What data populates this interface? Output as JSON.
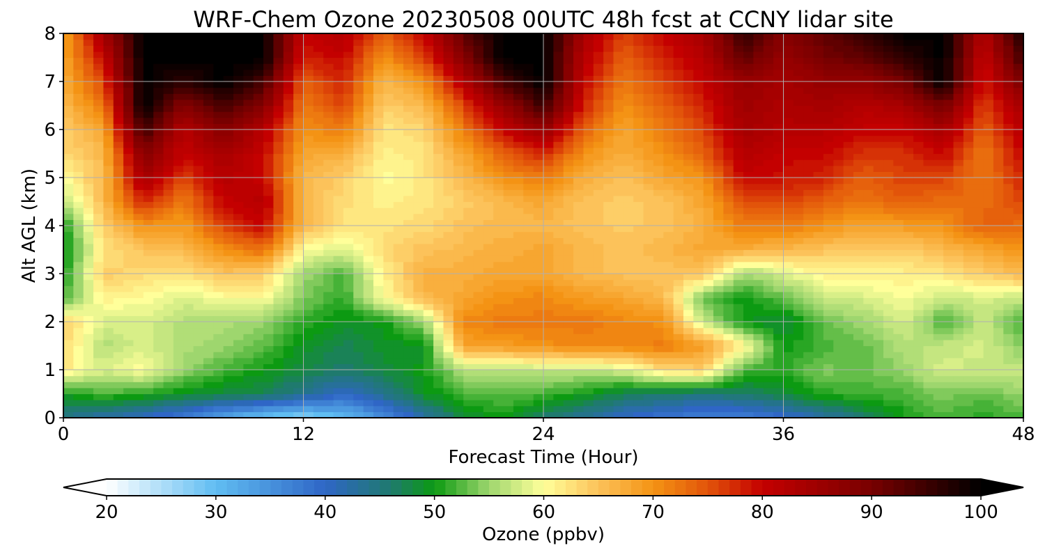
{
  "chart_data": {
    "type": "heatmap",
    "title": "WRF-Chem Ozone  20230508 00UTC 48h fcst at CCNY lidar site",
    "xlabel": "Forecast Time (Hour)",
    "ylabel": "Alt AGL (km)",
    "xlim": [
      0,
      48
    ],
    "ylim": [
      0,
      8
    ],
    "x_ticks": [
      0,
      12,
      24,
      36,
      48
    ],
    "y_ticks": [
      0,
      1,
      2,
      3,
      4,
      5,
      6,
      7,
      8
    ],
    "grid": true,
    "x": [
      0,
      2,
      4,
      6,
      8,
      10,
      12,
      14,
      16,
      18,
      20,
      22,
      24,
      26,
      28,
      30,
      32,
      34,
      36,
      38,
      40,
      42,
      44,
      46,
      48
    ],
    "y": [
      0,
      0.5,
      1,
      1.5,
      2,
      2.5,
      3,
      3.5,
      4,
      4.5,
      5,
      5.5,
      6,
      6.5,
      7,
      7.5,
      8
    ],
    "z_rows": [
      [
        44,
        42,
        40,
        37,
        32,
        29,
        27,
        30,
        35,
        42,
        48,
        50,
        46,
        43,
        40,
        38,
        37,
        37,
        39,
        42,
        46,
        50,
        52,
        51,
        52
      ],
      [
        50,
        52,
        51,
        49,
        48,
        47,
        44,
        40,
        44,
        49,
        52,
        53,
        52,
        50,
        47,
        46,
        45,
        46,
        48,
        51,
        52,
        52,
        54,
        53,
        55
      ],
      [
        62,
        58,
        60,
        55,
        52,
        50,
        48,
        46,
        48,
        50,
        56,
        56,
        57,
        57,
        58,
        63,
        64,
        52,
        51,
        54,
        53,
        55,
        58,
        57,
        57
      ],
      [
        63,
        56,
        58,
        56,
        55,
        53,
        49,
        47,
        49,
        49,
        68,
        69,
        70,
        71,
        71,
        72,
        69,
        61,
        50,
        52,
        53,
        56,
        57,
        58,
        54
      ],
      [
        64,
        58,
        58,
        56,
        56,
        55,
        51,
        49,
        50,
        55,
        71,
        72,
        72,
        72,
        71,
        70,
        57,
        50,
        48,
        53,
        55,
        58,
        52,
        57,
        52
      ],
      [
        52,
        61,
        60,
        58,
        60,
        60,
        54,
        51,
        60,
        66,
        68,
        70,
        71,
        69,
        68,
        66,
        53,
        50,
        53,
        57,
        58,
        60,
        57,
        58,
        57
      ],
      [
        50,
        64,
        63,
        62,
        65,
        64,
        55,
        52,
        61,
        67,
        67,
        68,
        68,
        66,
        65,
        65,
        65,
        55,
        58,
        61,
        61,
        61,
        62,
        64,
        66
      ],
      [
        49,
        62,
        65,
        66,
        70,
        73,
        60,
        58,
        63,
        65,
        66,
        67,
        68,
        66,
        65,
        66,
        68,
        67,
        66,
        65,
        64,
        64,
        66,
        68,
        70
      ],
      [
        50,
        64,
        70,
        69,
        76,
        80,
        66,
        62,
        62,
        63,
        65,
        66,
        66,
        65,
        64,
        65,
        67,
        72,
        72,
        70,
        68,
        69,
        70,
        74,
        73
      ],
      [
        56,
        66,
        78,
        72,
        80,
        82,
        66,
        63,
        61,
        62,
        64,
        66,
        68,
        65,
        64,
        65,
        68,
        75,
        76,
        74,
        72,
        74,
        73,
        73,
        76
      ],
      [
        60,
        66,
        84,
        76,
        82,
        80,
        66,
        64,
        60,
        62,
        66,
        70,
        72,
        67,
        65,
        68,
        70,
        80,
        79,
        78,
        74,
        76,
        76,
        72,
        78
      ],
      [
        63,
        66,
        88,
        80,
        84,
        80,
        68,
        67,
        61,
        62,
        68,
        74,
        78,
        70,
        67,
        70,
        74,
        82,
        80,
        80,
        77,
        77,
        80,
        72,
        80
      ],
      [
        64,
        68,
        95,
        82,
        88,
        82,
        70,
        72,
        62,
        63,
        72,
        80,
        86,
        74,
        68,
        72,
        76,
        84,
        82,
        82,
        80,
        80,
        84,
        74,
        82
      ],
      [
        66,
        72,
        100,
        88,
        94,
        88,
        72,
        76,
        64,
        66,
        76,
        86,
        95,
        78,
        70,
        74,
        78,
        85,
        83,
        84,
        82,
        84,
        90,
        76,
        84
      ],
      [
        67,
        76,
        100,
        96,
        100,
        94,
        74,
        78,
        66,
        70,
        82,
        94,
        100,
        80,
        72,
        76,
        80,
        86,
        84,
        86,
        86,
        90,
        100,
        78,
        90
      ],
      [
        68,
        80,
        100,
        100,
        100,
        100,
        78,
        80,
        70,
        76,
        88,
        100,
        100,
        82,
        74,
        78,
        82,
        92,
        86,
        90,
        92,
        96,
        100,
        80,
        95
      ],
      [
        68,
        84,
        100,
        100,
        100,
        100,
        80,
        82,
        74,
        80,
        92,
        100,
        100,
        84,
        76,
        80,
        84,
        96,
        88,
        92,
        96,
        100,
        100,
        82,
        98
      ]
    ],
    "colorbar": {
      "label": "Ozone  (ppbv)",
      "min": 20,
      "max": 100,
      "ticks": [
        20,
        30,
        40,
        50,
        60,
        70,
        80,
        90,
        100
      ],
      "extend": "both",
      "color_stops": [
        {
          "value": 20,
          "color": "#ffffff"
        },
        {
          "value": 30,
          "color": "#60bdf2"
        },
        {
          "value": 40,
          "color": "#2f66c6"
        },
        {
          "value": 46,
          "color": "#1f7a6e"
        },
        {
          "value": 50,
          "color": "#0c9a12"
        },
        {
          "value": 55,
          "color": "#9ed66e"
        },
        {
          "value": 60,
          "color": "#ffff9a"
        },
        {
          "value": 65,
          "color": "#fcc25a"
        },
        {
          "value": 70,
          "color": "#f49314"
        },
        {
          "value": 75,
          "color": "#e2540a"
        },
        {
          "value": 80,
          "color": "#c40000"
        },
        {
          "value": 90,
          "color": "#780000"
        },
        {
          "value": 100,
          "color": "#000000"
        }
      ]
    }
  }
}
